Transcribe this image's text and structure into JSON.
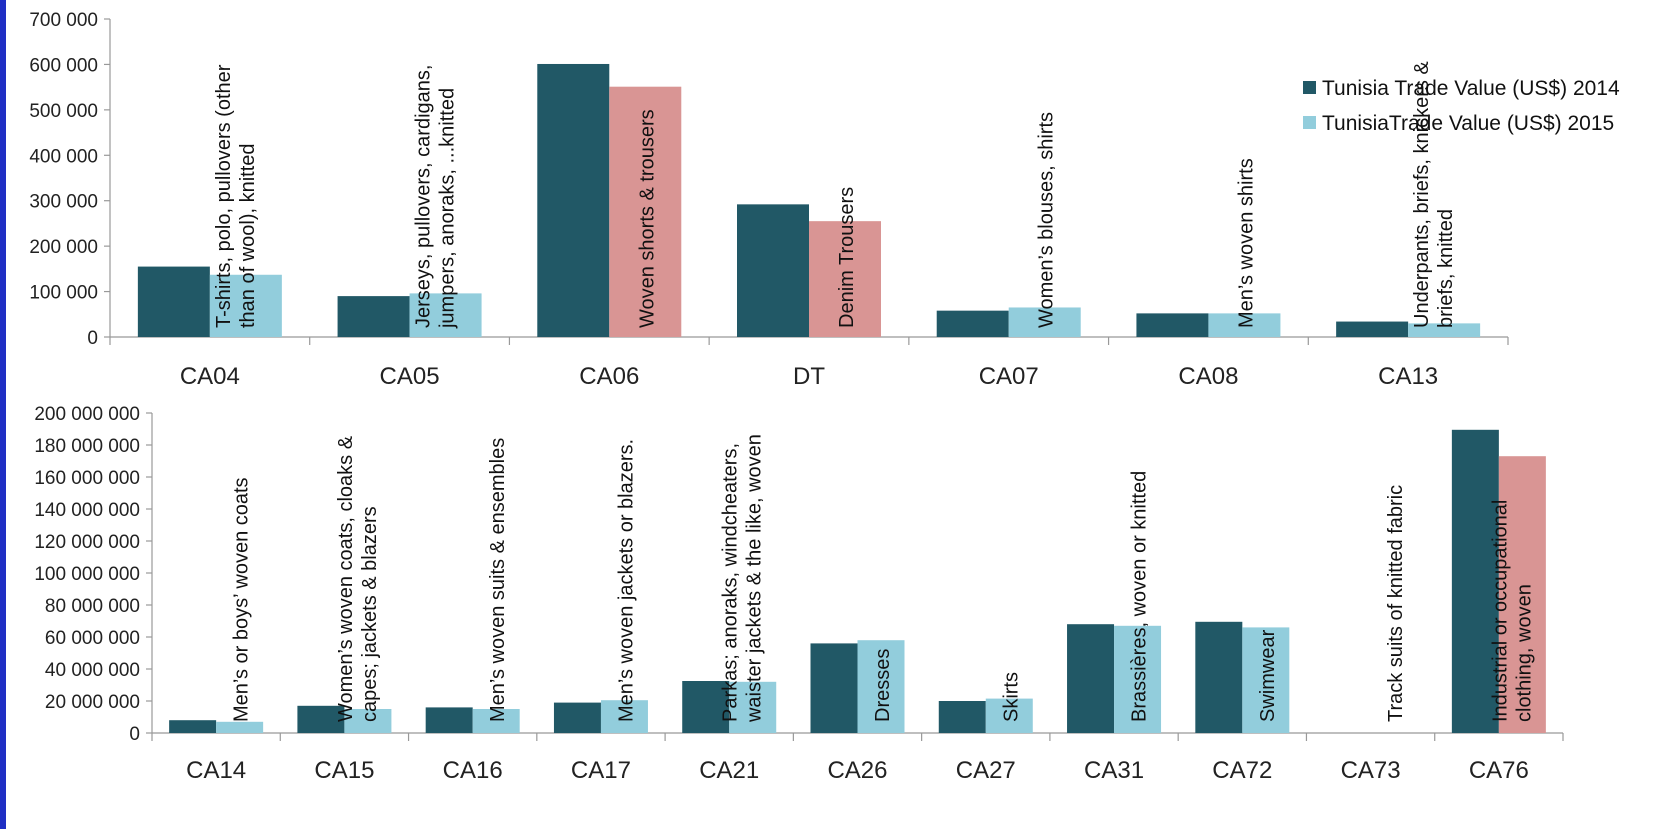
{
  "colors": {
    "edge_bar": "#1f2fc4",
    "series_2014": "#215866",
    "series_2015": "#92cddc",
    "highlight_2015": "#d99594"
  },
  "legend": {
    "series_2014": "Tunisia Trade Value (US$)  2014",
    "series_2015": "TunisiaTrade Value (US$) 2015",
    "placement": "top-right"
  },
  "chart_data": [
    {
      "type": "bar",
      "ylim": [
        0,
        700000
      ],
      "yticks": [
        0,
        100000,
        200000,
        300000,
        400000,
        500000,
        600000,
        700000
      ],
      "ytick_labels": [
        "0",
        "100 000",
        "200 000",
        "300 000",
        "400 000",
        "500 000",
        "600 000",
        "700 000"
      ],
      "categories": [
        "CA04",
        "CA05",
        "CA06",
        "DT",
        "CA07",
        "CA08",
        "CA13"
      ],
      "descriptions": [
        [
          "T-shirts, polo, pullovers (other",
          "than of wool), knitted"
        ],
        [
          "Jerseys, pullovers, cardigans,",
          "jumpers, anoraks, ...knitted"
        ],
        [
          "Woven shorts & trousers"
        ],
        [
          "Denim Trousers"
        ],
        [
          "Women’s  blouses, shirts"
        ],
        [
          "Men’s woven shirts"
        ],
        [
          "Underpants, briefs, knickers &",
          "briefs, knitted"
        ]
      ],
      "highlight": [
        false,
        false,
        true,
        true,
        false,
        false,
        false
      ],
      "series": [
        {
          "name": "Tunisia Trade Value (US$)  2014",
          "values": [
            155000,
            90000,
            601000,
            292000,
            58000,
            52000,
            34000
          ]
        },
        {
          "name": "TunisiaTrade Value (US$) 2015",
          "values": [
            137000,
            96000,
            551000,
            255000,
            65000,
            52000,
            30000
          ]
        }
      ],
      "grid": false
    },
    {
      "type": "bar",
      "ylim": [
        0,
        200000000
      ],
      "yticks": [
        0,
        20000000,
        40000000,
        60000000,
        80000000,
        100000000,
        120000000,
        140000000,
        160000000,
        180000000,
        200000000
      ],
      "ytick_labels": [
        "0",
        "20 000 000",
        "40 000 000",
        "60 000 000",
        "80 000 000",
        "100 000 000",
        "120 000 000",
        "140 000 000",
        "160 000 000",
        "180 000 000",
        "200 000 000"
      ],
      "categories": [
        "CA14",
        "CA15",
        "CA16",
        "CA17",
        "CA21",
        "CA26",
        "CA27",
        "CA31",
        "CA72",
        "CA73",
        "CA76"
      ],
      "descriptions": [
        [
          "Men’s or boys’ woven coats"
        ],
        [
          "Women’s  woven coats, cloaks &",
          "capes; jackets & blazers"
        ],
        [
          "Men’s woven suits & ensembles"
        ],
        [
          "Men’s  woven jackets or blazers."
        ],
        [
          "Parkas; anoraks, windcheaters,",
          "waister jackets & the like, woven"
        ],
        [
          "Dresses"
        ],
        [
          "Skirts"
        ],
        [
          "Brassières, woven or knitted"
        ],
        [
          "Swimwear"
        ],
        [
          "Track suits of knitted fabric"
        ],
        [
          "Industrial or occupational",
          "clothing, woven"
        ]
      ],
      "highlight": [
        false,
        false,
        false,
        false,
        false,
        false,
        false,
        false,
        false,
        false,
        true
      ],
      "series": [
        {
          "name": "Tunisia Trade Value (US$)  2014",
          "values": [
            8000000,
            17000000,
            16000000,
            19000000,
            32500000,
            56000000,
            20000000,
            68000000,
            69500000,
            0,
            189500000
          ]
        },
        {
          "name": "TunisiaTrade Value (US$) 2015",
          "values": [
            7000000,
            15000000,
            15000000,
            20500000,
            32000000,
            58000000,
            21500000,
            67000000,
            66000000,
            0,
            173000000
          ]
        }
      ],
      "grid": false
    }
  ]
}
